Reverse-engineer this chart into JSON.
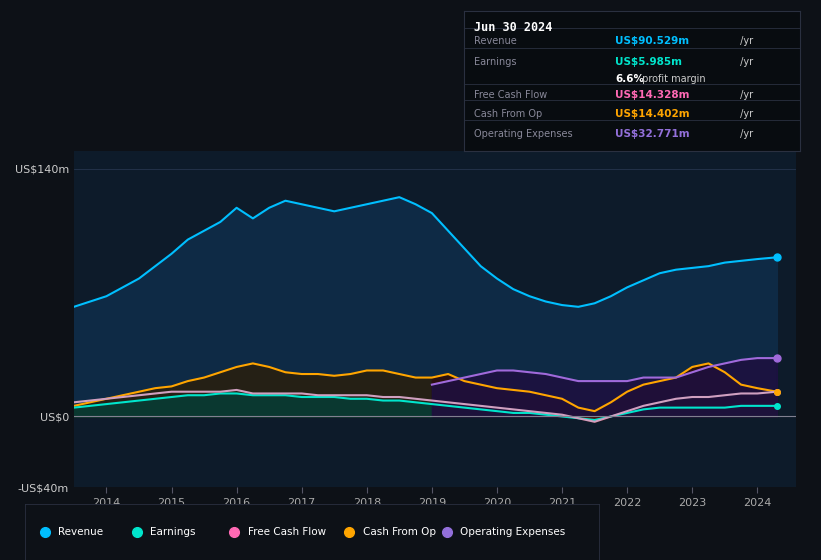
{
  "bg_color": "#0d1117",
  "plot_bg_color": "#0d1b2a",
  "title": "Jun 30 2024",
  "info_table": {
    "Revenue": {
      "value": "US$90.529m",
      "color": "#00bfff"
    },
    "Earnings": {
      "value": "US$5.985m",
      "color": "#00e5cc"
    },
    "profit_margin": "6.6% profit margin",
    "Free Cash Flow": {
      "value": "US$14.328m",
      "color": "#ff69b4"
    },
    "Cash From Op": {
      "value": "US$14.402m",
      "color": "#ffa500"
    },
    "Operating Expenses": {
      "value": "US$32.771m",
      "color": "#9370db"
    }
  },
  "ylim": [
    -40,
    150
  ],
  "xlim": [
    2013.5,
    2024.6
  ],
  "years": [
    2013.5,
    2013.75,
    2014.0,
    2014.25,
    2014.5,
    2014.75,
    2015.0,
    2015.25,
    2015.5,
    2015.75,
    2016.0,
    2016.25,
    2016.5,
    2016.75,
    2017.0,
    2017.25,
    2017.5,
    2017.75,
    2018.0,
    2018.25,
    2018.5,
    2018.75,
    2019.0,
    2019.25,
    2019.5,
    2019.75,
    2020.0,
    2020.25,
    2020.5,
    2020.75,
    2021.0,
    2021.25,
    2021.5,
    2021.75,
    2022.0,
    2022.25,
    2022.5,
    2022.75,
    2023.0,
    2023.25,
    2023.5,
    2023.75,
    2024.0,
    2024.3
  ],
  "revenue": [
    62,
    65,
    68,
    73,
    78,
    85,
    92,
    100,
    105,
    110,
    118,
    112,
    118,
    122,
    120,
    118,
    116,
    118,
    120,
    122,
    124,
    120,
    115,
    105,
    95,
    85,
    78,
    72,
    68,
    65,
    63,
    62,
    64,
    68,
    73,
    77,
    81,
    83,
    84,
    85,
    87,
    88,
    89,
    90
  ],
  "earnings": [
    5,
    6,
    7,
    8,
    9,
    10,
    11,
    12,
    12,
    13,
    13,
    12,
    12,
    12,
    11,
    11,
    11,
    10,
    10,
    9,
    9,
    8,
    7,
    6,
    5,
    4,
    3,
    2,
    2,
    1,
    0,
    -1,
    -2,
    0,
    2,
    4,
    5,
    5,
    5,
    5,
    5,
    6,
    6,
    6
  ],
  "free_cash_flow": [
    8,
    9,
    10,
    11,
    12,
    13,
    14,
    14,
    14,
    14,
    15,
    13,
    13,
    13,
    13,
    12,
    12,
    12,
    12,
    11,
    11,
    10,
    9,
    8,
    7,
    6,
    5,
    4,
    3,
    2,
    1,
    -1,
    -3,
    0,
    3,
    6,
    8,
    10,
    11,
    11,
    12,
    13,
    13,
    14
  ],
  "cash_from_op": [
    6,
    8,
    10,
    12,
    14,
    16,
    17,
    20,
    22,
    25,
    28,
    30,
    28,
    25,
    24,
    24,
    23,
    24,
    26,
    26,
    24,
    22,
    22,
    24,
    20,
    18,
    16,
    15,
    14,
    12,
    10,
    5,
    3,
    8,
    14,
    18,
    20,
    22,
    28,
    30,
    25,
    18,
    16,
    14
  ],
  "operating_expenses": [
    0,
    0,
    0,
    0,
    0,
    0,
    0,
    0,
    0,
    0,
    0,
    0,
    0,
    0,
    0,
    0,
    0,
    0,
    0,
    0,
    0,
    0,
    18,
    20,
    22,
    24,
    26,
    26,
    25,
    24,
    22,
    20,
    20,
    20,
    20,
    22,
    22,
    22,
    25,
    28,
    30,
    32,
    33,
    33
  ],
  "colors": {
    "revenue": "#00bfff",
    "revenue_fill": "#0e2a45",
    "earnings": "#00e5cc",
    "earnings_fill": "#0a3830",
    "free_cash_flow": "#ff9fcc",
    "cash_from_op": "#ffa500",
    "cash_from_op_fill_left": "#2a2010",
    "cash_from_op_fill_right": "#3a1a10",
    "operating_expenses": "#a06adb",
    "operating_expenses_fill": "#1e0f40"
  },
  "legend_items": [
    {
      "label": "Revenue",
      "color": "#00bfff"
    },
    {
      "label": "Earnings",
      "color": "#00e5cc"
    },
    {
      "label": "Free Cash Flow",
      "color": "#ff69b4"
    },
    {
      "label": "Cash From Op",
      "color": "#ffa500"
    },
    {
      "label": "Operating Expenses",
      "color": "#9370db"
    }
  ],
  "xticks": [
    2014,
    2015,
    2016,
    2017,
    2018,
    2019,
    2020,
    2021,
    2022,
    2023,
    2024
  ],
  "yticks": [
    -40,
    0,
    140
  ],
  "ytick_labels": [
    "-US$40m",
    "US$0",
    "US$140m"
  ]
}
